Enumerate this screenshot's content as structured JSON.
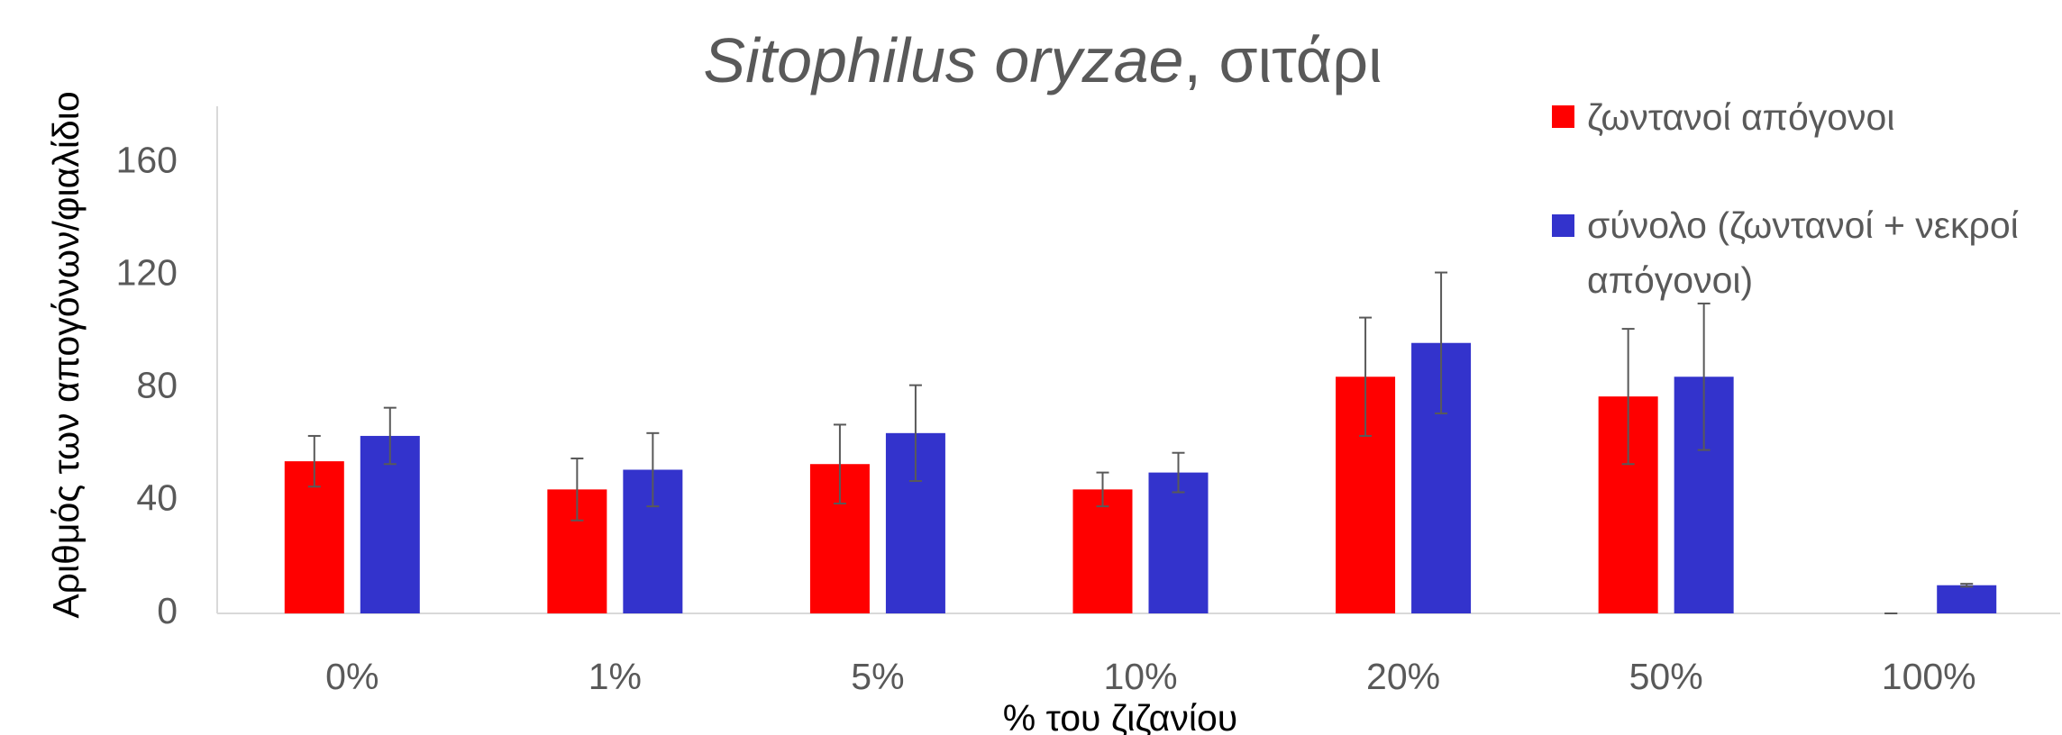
{
  "chart_data": {
    "type": "bar",
    "title": "Sitophilus oryzae",
    "title_suffix": ", σιτάρι",
    "x_label": "% του ζιζανίου",
    "y_label": "Αριθμός των απογόνων/φιαλίδιο",
    "categories": [
      "0%",
      "1%",
      "5%",
      "10%",
      "20%",
      "50%",
      "100%"
    ],
    "series": [
      {
        "name": "ζωντανοί απόγονοι",
        "color": "#ff0000",
        "values": [
          54,
          44,
          53,
          44,
          84,
          77,
          0
        ],
        "errors": [
          9,
          11,
          14,
          6,
          21,
          24,
          0
        ]
      },
      {
        "name": "σύνολο (ζωντανοί + νεκροί απόγονοι)",
        "color": "#3333cc",
        "values": [
          63,
          51,
          64,
          50,
          96,
          84,
          10
        ],
        "errors": [
          10,
          13,
          17,
          7,
          25,
          26,
          0.5
        ]
      }
    ],
    "ylim": [
      0,
      180
    ],
    "yticks": [
      0,
      40,
      80,
      120,
      160
    ],
    "grid": false,
    "legend": "top-right"
  }
}
